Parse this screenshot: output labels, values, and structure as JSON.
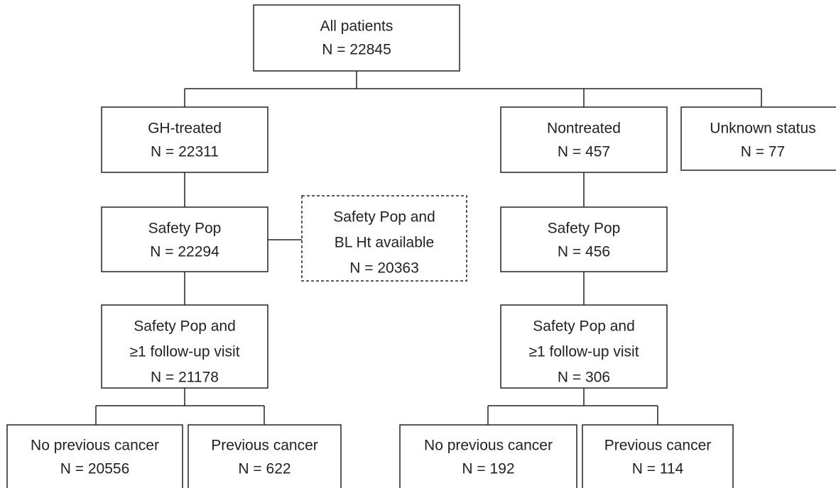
{
  "nodes": [
    {
      "lines": [
        "All patients",
        "N = 22845"
      ]
    },
    {
      "lines": [
        "GH-treated",
        "N = 22311"
      ]
    },
    {
      "lines": [
        "Nontreated",
        "N = 457"
      ]
    },
    {
      "lines": [
        "Unknown status",
        "N = 77"
      ]
    },
    {
      "lines": [
        "Safety Pop",
        "N = 22294"
      ]
    },
    {
      "lines": [
        "Safety Pop and",
        "BL Ht available",
        "N = 20363"
      ]
    },
    {
      "lines": [
        "Safety Pop",
        "N = 456"
      ]
    },
    {
      "lines": [
        "Safety Pop and",
        "≥1 follow-up visit",
        "N = 21178"
      ]
    },
    {
      "lines": [
        "Safety Pop and",
        "≥1 follow-up visit",
        "N = 306"
      ]
    },
    {
      "lines": [
        "No previous cancer",
        "N = 20556"
      ]
    },
    {
      "lines": [
        "Previous cancer",
        "N = 622"
      ]
    },
    {
      "lines": [
        "No previous cancer",
        "N = 192"
      ]
    },
    {
      "lines": [
        "Previous cancer",
        "N = 114"
      ]
    }
  ]
}
